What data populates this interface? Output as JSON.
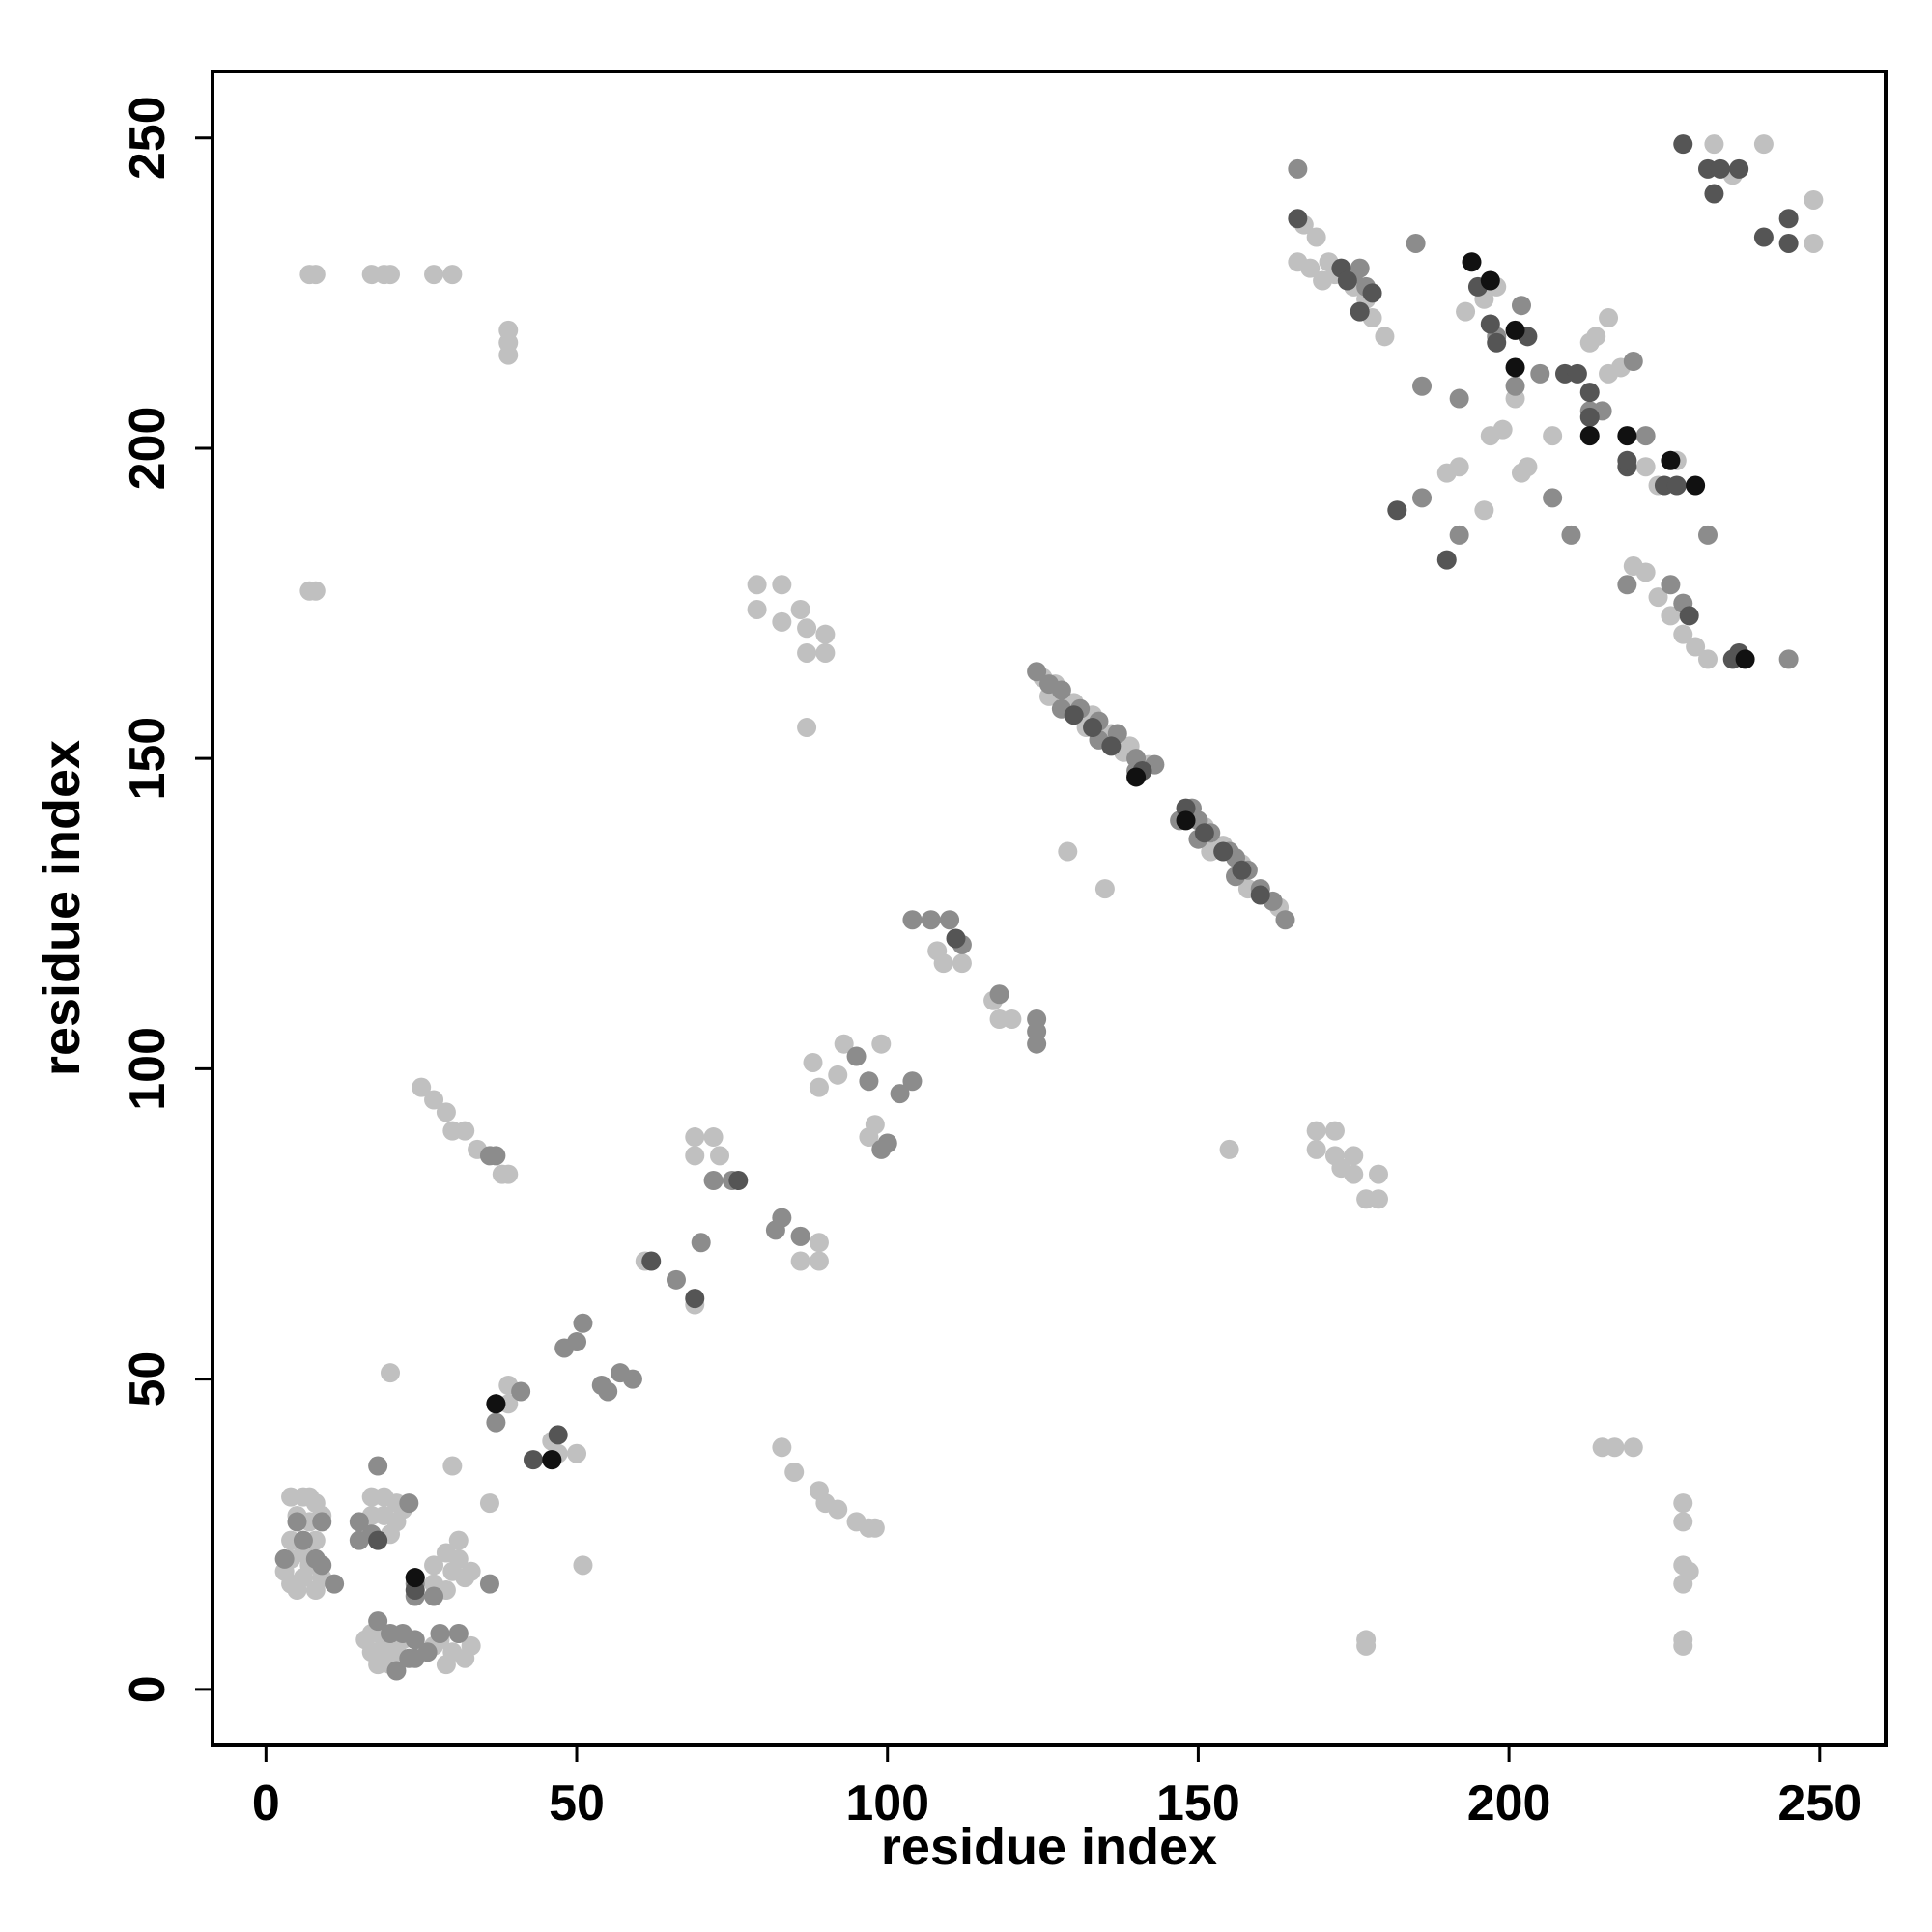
{
  "chart_data": {
    "type": "scatter",
    "xlabel": "residue index",
    "ylabel": "residue index",
    "xlim": [
      -8.6,
      260.6
    ],
    "ylim": [
      -8.9,
      260.7
    ],
    "xticks": [
      0,
      50,
      100,
      150,
      200,
      250
    ],
    "yticks": [
      0,
      50,
      100,
      150,
      200,
      250
    ],
    "grid": false,
    "series": [
      {
        "color": "#c0c0c0",
        "x": [
          7,
          8,
          17,
          19,
          20,
          27,
          30,
          39,
          39,
          39,
          7,
          8,
          79,
          83,
          79,
          83,
          86,
          87,
          90,
          87,
          90,
          87,
          167,
          169,
          171,
          172,
          175,
          177,
          178,
          180,
          166,
          168,
          170,
          193,
          196,
          198,
          190,
          192,
          196,
          197,
          199,
          201,
          202,
          203,
          207,
          213,
          214,
          216,
          216,
          218,
          220,
          222,
          224,
          226,
          228,
          230,
          232,
          222,
          224,
          227,
          233,
          241,
          249,
          249,
          236,
          215,
          217,
          220,
          228,
          228,
          228,
          229,
          228,
          228,
          228,
          177,
          177,
          169,
          169,
          172,
          172,
          173,
          175,
          175,
          177,
          179,
          179,
          155,
          25,
          27,
          29,
          30,
          32,
          34,
          38,
          39,
          4,
          6,
          7,
          8,
          9,
          5,
          7,
          4,
          3,
          4,
          5,
          6,
          7,
          8,
          9,
          6,
          4,
          8,
          17,
          19,
          21,
          22,
          19,
          21,
          17,
          20,
          16,
          17,
          18,
          19,
          20,
          17,
          19,
          21,
          22,
          27,
          29,
          30,
          31,
          32,
          29,
          27,
          31,
          33,
          28,
          30,
          32,
          31,
          29,
          27,
          33,
          20,
          30,
          36,
          51,
          83,
          85,
          89,
          90,
          92,
          95,
          97,
          98,
          69,
          69,
          72,
          73,
          86,
          89,
          86,
          89,
          93,
          99,
          88,
          89,
          92,
          98,
          97,
          100,
          108,
          109,
          112,
          117,
          118,
          120,
          39,
          39,
          46,
          47,
          50,
          61,
          69,
          129,
          135,
          125,
          127,
          130,
          133,
          136,
          139,
          142,
          151,
          154,
          157,
          160,
          163,
          126,
          132,
          138,
          152,
          158
        ],
        "y": [
          228,
          228,
          228,
          228,
          228,
          228,
          228,
          219,
          217,
          215,
          177,
          177,
          178,
          178,
          174,
          172,
          174,
          171,
          170,
          167,
          167,
          155,
          236,
          234,
          230,
          228,
          226,
          224,
          221,
          218,
          230,
          229,
          227,
          222,
          224,
          226,
          196,
          197,
          190,
          202,
          203,
          208,
          196,
          197,
          202,
          217,
          218,
          221,
          212,
          213,
          181,
          180,
          176,
          173,
          170,
          168,
          166,
          197,
          194,
          198,
          249,
          249,
          240,
          233,
          244,
          39,
          39,
          39,
          30,
          27,
          20,
          19,
          17,
          8,
          7,
          8,
          7,
          90,
          87,
          90,
          86,
          84,
          86,
          83,
          79,
          83,
          79,
          87,
          97,
          95,
          93,
          90,
          90,
          87,
          83,
          83,
          31,
          31,
          31,
          30,
          28,
          28,
          27,
          21,
          19,
          17,
          16,
          18,
          20,
          16,
          18,
          22,
          24,
          24,
          31,
          31,
          30,
          29,
          28,
          27,
          28,
          25,
          8,
          6,
          4,
          6,
          4,
          9,
          8,
          6,
          8,
          20,
          22,
          19,
          21,
          18,
          16,
          17,
          24,
          19,
          8,
          6,
          5,
          9,
          4,
          7,
          7,
          51,
          36,
          30,
          20,
          39,
          35,
          32,
          30,
          29,
          27,
          26,
          26,
          89,
          86,
          89,
          86,
          73,
          72,
          69,
          69,
          104,
          104,
          101,
          97,
          99,
          91,
          89,
          88,
          119,
          117,
          117,
          111,
          108,
          108,
          49,
          46,
          40,
          38,
          38,
          69,
          62,
          135,
          129,
          163,
          162,
          159,
          157,
          154,
          152,
          149,
          139,
          136,
          133,
          129,
          126,
          160,
          155,
          151,
          135,
          129
        ]
      },
      {
        "color": "#8c8c8c",
        "x": [
          166,
          177,
          176,
          185,
          175,
          186,
          186,
          192,
          192,
          198,
          201,
          202,
          205,
          207,
          210,
          213,
          215,
          220,
          222,
          232,
          245,
          228,
          226,
          219,
          70,
          66,
          57,
          54,
          51,
          48,
          50,
          41,
          37,
          36,
          18,
          23,
          55,
          59,
          83,
          82,
          86,
          75,
          72,
          95,
          97,
          102,
          104,
          99,
          100,
          104,
          107,
          110,
          112,
          124,
          124,
          124,
          118,
          36,
          37,
          18,
          20,
          22,
          24,
          28,
          31,
          5,
          9,
          6,
          3,
          8,
          9,
          11,
          15,
          15,
          17,
          21,
          23,
          24,
          24,
          27,
          26,
          24,
          124,
          126,
          128,
          131,
          134,
          137,
          140,
          143,
          147,
          149,
          150,
          152,
          155,
          156,
          158,
          160,
          162,
          164,
          128,
          134,
          140,
          150,
          156
        ],
        "y": [
          245,
          226,
          229,
          233,
          228,
          210,
          192,
          208,
          186,
          218,
          210,
          223,
          212,
          192,
          186,
          206,
          206,
          214,
          202,
          186,
          166,
          175,
          178,
          178,
          72,
          66,
          51,
          49,
          59,
          55,
          56,
          48,
          43,
          17,
          36,
          30,
          48,
          50,
          76,
          74,
          73,
          82,
          82,
          102,
          98,
          96,
          98,
          87,
          88,
          124,
          124,
          124,
          120,
          104,
          108,
          106,
          112,
          86,
          86,
          11,
          9,
          9,
          8,
          9,
          9,
          27,
          27,
          24,
          21,
          21,
          20,
          17,
          27,
          24,
          25,
          3,
          5,
          17,
          15,
          15,
          6,
          5,
          164,
          162,
          161,
          158,
          156,
          154,
          150,
          149,
          140,
          142,
          140,
          138,
          135,
          134,
          132,
          129,
          127,
          124,
          158,
          153,
          148,
          137,
          131
        ]
      },
      {
        "color": "#555555",
        "x": [
          166,
          173,
          174,
          176,
          178,
          195,
          197,
          198,
          203,
          219,
          219,
          225,
          227,
          229,
          237,
          236,
          228,
          232,
          234,
          237,
          233,
          241,
          245,
          245,
          182,
          190,
          209,
          211,
          213,
          24,
          24,
          18,
          46,
          43,
          62,
          69,
          76,
          37,
          47,
          213,
          141,
          148,
          111,
          130,
          133,
          136,
          151,
          154,
          157,
          160
        ],
        "y": [
          237,
          229,
          227,
          222,
          225,
          226,
          220,
          217,
          218,
          197,
          198,
          194,
          194,
          173,
          167,
          166,
          249,
          245,
          245,
          245,
          241,
          234,
          237,
          233,
          190,
          182,
          212,
          212,
          209,
          18,
          16,
          24,
          37,
          37,
          69,
          63,
          82,
          46,
          41,
          205,
          148,
          142,
          121,
          157,
          155,
          152,
          138,
          135,
          132,
          128
        ]
      },
      {
        "color": "#111111",
        "x": [
          194,
          197,
          201,
          201,
          213,
          219,
          226,
          230,
          238,
          46,
          37,
          24,
          140,
          148
        ],
        "y": [
          230,
          227,
          219,
          213,
          202,
          202,
          198,
          194,
          166,
          37,
          46,
          18,
          147,
          140
        ]
      }
    ]
  }
}
